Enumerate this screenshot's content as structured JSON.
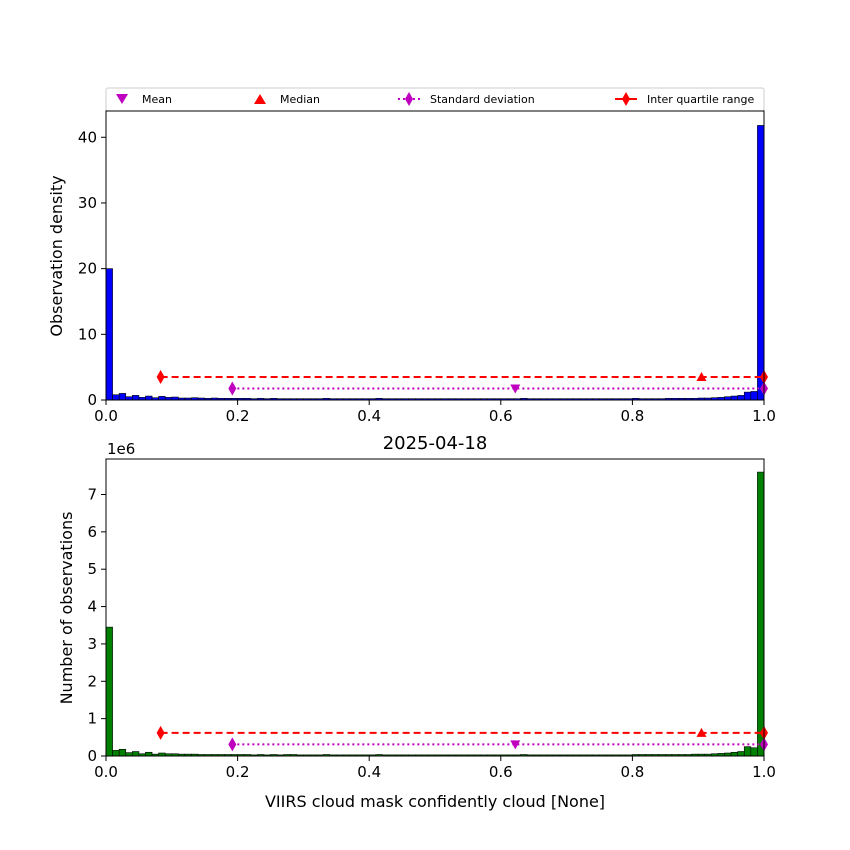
{
  "colors": {
    "top_bars": "#0000ff",
    "bottom_bars": "#008000",
    "bar_edge": "#000000",
    "mean": "#bf00bf",
    "median": "#ff0000",
    "std": "#bf00bf",
    "iqr": "#ff0000"
  },
  "legend": {
    "mean": "Mean",
    "median": "Median",
    "std": "Standard deviation",
    "iqr": "Inter quartile range"
  },
  "chart_data": [
    {
      "type": "bar",
      "panel": "top",
      "title": "",
      "xlabel": "",
      "ylabel": "Observation density",
      "xlim": [
        0.0,
        1.0
      ],
      "ylim": [
        0,
        44
      ],
      "xticks": [
        "0.0",
        "0.2",
        "0.4",
        "0.6",
        "0.8",
        "1.0"
      ],
      "yticks": [
        "0",
        "10",
        "20",
        "30",
        "40"
      ],
      "ytick_values": [
        0,
        10,
        20,
        30,
        40
      ],
      "bin_width": 0.01,
      "bins_note_values": "density per bin starting at 0.00",
      "values": [
        20.0,
        0.8,
        1.0,
        0.5,
        0.7,
        0.4,
        0.6,
        0.35,
        0.55,
        0.4,
        0.45,
        0.3,
        0.3,
        0.35,
        0.3,
        0.25,
        0.3,
        0.25,
        0.25,
        0.25,
        0.25,
        0.25,
        0.2,
        0.25,
        0.2,
        0.25,
        0.2,
        0.2,
        0.2,
        0.2,
        0.2,
        0.2,
        0.2,
        0.25,
        0.2,
        0.2,
        0.2,
        0.2,
        0.2,
        0.2,
        0.2,
        0.25,
        0.2,
        0.2,
        0.2,
        0.2,
        0.2,
        0.2,
        0.2,
        0.2,
        0.2,
        0.2,
        0.2,
        0.2,
        0.2,
        0.2,
        0.2,
        0.2,
        0.2,
        0.2,
        0.2,
        0.2,
        0.2,
        0.25,
        0.2,
        0.2,
        0.2,
        0.2,
        0.2,
        0.2,
        0.2,
        0.2,
        0.2,
        0.2,
        0.2,
        0.2,
        0.2,
        0.2,
        0.2,
        0.2,
        0.25,
        0.2,
        0.2,
        0.2,
        0.2,
        0.25,
        0.25,
        0.25,
        0.25,
        0.25,
        0.3,
        0.3,
        0.35,
        0.4,
        0.5,
        0.6,
        0.7,
        1.2,
        1.3,
        41.8
      ],
      "stats": {
        "mean": 0.622,
        "median": 0.905,
        "std_range": [
          0.192,
          1.0
        ],
        "iqr_range": [
          0.083,
          1.0
        ]
      },
      "stat_levels": {
        "std": 1.75,
        "iqr": 3.5,
        "mean": 1.75,
        "median": 3.5
      }
    },
    {
      "type": "bar",
      "panel": "bottom",
      "title": "2025-04-18",
      "xlabel": "VIIRS cloud mask confidently cloud [None]",
      "ylabel": "Number of observations",
      "offset_label": "1e6",
      "xlim": [
        0.0,
        1.0
      ],
      "ylim": [
        0,
        7.95
      ],
      "xticks": [
        "0.0",
        "0.2",
        "0.4",
        "0.6",
        "0.8",
        "1.0"
      ],
      "yticks": [
        "0",
        "1",
        "2",
        "3",
        "4",
        "5",
        "6",
        "7"
      ],
      "ytick_values": [
        0,
        1,
        2,
        3,
        4,
        5,
        6,
        7
      ],
      "bin_width": 0.01,
      "values": [
        3.45,
        0.15,
        0.18,
        0.09,
        0.12,
        0.06,
        0.1,
        0.05,
        0.08,
        0.06,
        0.06,
        0.05,
        0.05,
        0.05,
        0.04,
        0.04,
        0.04,
        0.04,
        0.04,
        0.04,
        0.04,
        0.04,
        0.03,
        0.04,
        0.03,
        0.04,
        0.03,
        0.04,
        0.04,
        0.03,
        0.03,
        0.03,
        0.03,
        0.04,
        0.03,
        0.03,
        0.03,
        0.03,
        0.03,
        0.03,
        0.03,
        0.04,
        0.03,
        0.03,
        0.03,
        0.03,
        0.03,
        0.03,
        0.03,
        0.03,
        0.03,
        0.03,
        0.03,
        0.03,
        0.03,
        0.03,
        0.03,
        0.03,
        0.03,
        0.03,
        0.03,
        0.03,
        0.03,
        0.04,
        0.03,
        0.03,
        0.03,
        0.03,
        0.03,
        0.03,
        0.03,
        0.03,
        0.03,
        0.03,
        0.03,
        0.03,
        0.03,
        0.03,
        0.03,
        0.03,
        0.04,
        0.04,
        0.04,
        0.04,
        0.04,
        0.04,
        0.04,
        0.04,
        0.04,
        0.05,
        0.05,
        0.05,
        0.06,
        0.07,
        0.08,
        0.1,
        0.12,
        0.25,
        0.22,
        7.6
      ],
      "stats": {
        "mean": 0.622,
        "median": 0.905,
        "std_range": [
          0.192,
          1.0
        ],
        "iqr_range": [
          0.083,
          1.0
        ]
      },
      "stat_levels": {
        "std": 0.31,
        "iqr": 0.62,
        "mean": 0.31,
        "median": 0.62
      }
    }
  ]
}
